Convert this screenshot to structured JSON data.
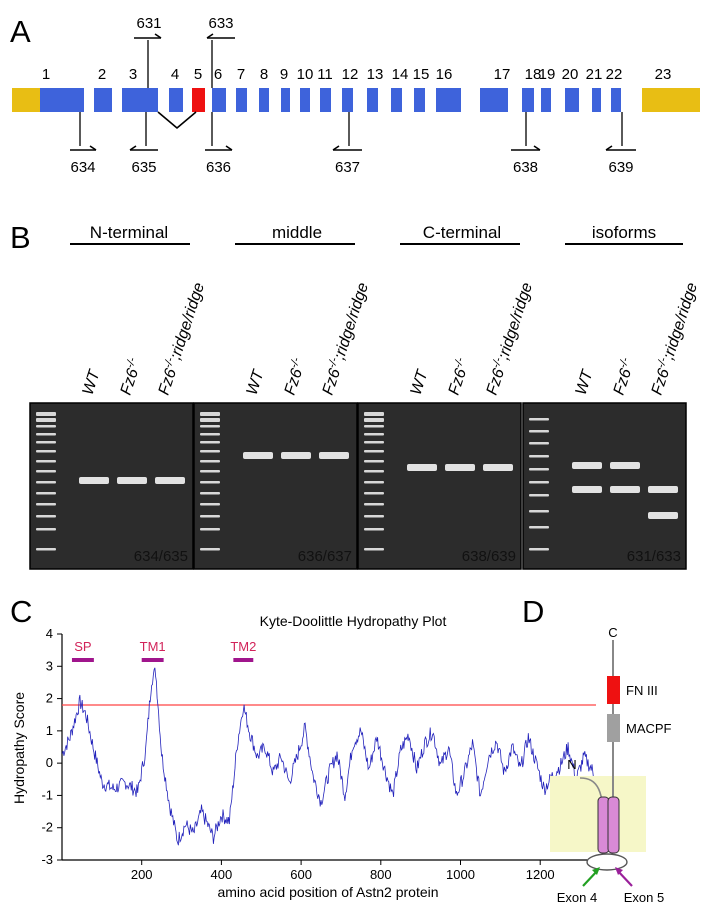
{
  "panels": {
    "a": "A",
    "b": "B",
    "c": "C",
    "d": "D"
  },
  "panel_a": {
    "exon_numbers": [
      "1",
      "2",
      "3",
      "4",
      "5",
      "6",
      "7",
      "8",
      "9",
      "10",
      "11",
      "12",
      "13",
      "14",
      "15",
      "16",
      "17",
      "18",
      "19",
      "20",
      "21",
      "22",
      "23"
    ],
    "primers_top": [
      "631",
      "633"
    ],
    "primers_bottom": [
      "634",
      "635",
      "636",
      "637",
      "638",
      "639"
    ],
    "colors": {
      "coding_exon": "#3e63db",
      "utr": "#e8be14",
      "exon5": "#ee1111",
      "line": "#000000"
    }
  },
  "panel_b": {
    "groups": [
      {
        "title": "N-terminal",
        "pair": "634/635"
      },
      {
        "title": "middle",
        "pair": "636/637"
      },
      {
        "title": "C-terminal",
        "pair": "638/639"
      },
      {
        "title": "isoforms",
        "pair": "631/633"
      }
    ],
    "lanes": [
      {
        "base": "WT",
        "sup": ""
      },
      {
        "base": "Fz6",
        "sup": "-/-"
      },
      {
        "base": "Fz6",
        "sup": "-/-",
        "tail": ";ridge/ridge"
      }
    ],
    "band_levels": {
      "N-terminal": [
        1,
        1,
        1
      ],
      "middle": [
        1,
        1,
        1
      ],
      "C-terminal": [
        1,
        1,
        1
      ],
      "isoforms_upper": [
        1,
        1,
        0
      ],
      "isoforms_lower": [
        1,
        1,
        1
      ],
      "isoforms_lowest": [
        0,
        0,
        1
      ]
    }
  },
  "chart_data": {
    "type": "line",
    "title": "Kyte-Doolittle Hydropathy Plot",
    "xlabel": "amino acid position of Astn2 protein",
    "ylabel": "Hydropathy Score",
    "xlim": [
      0,
      1340
    ],
    "ylim": [
      -3,
      4
    ],
    "x_ticks": [
      200,
      400,
      600,
      800,
      1000,
      1200
    ],
    "y_ticks": [
      -3,
      -2,
      -1,
      0,
      1,
      2,
      3,
      4
    ],
    "threshold": 1.8,
    "regions": [
      {
        "label": "SP",
        "x": [
          25,
          80
        ]
      },
      {
        "label": "TM1",
        "x": [
          200,
          255
        ]
      },
      {
        "label": "TM2",
        "x": [
          430,
          480
        ]
      }
    ],
    "profile_points": [
      [
        1,
        0.3
      ],
      [
        20,
        0.8
      ],
      [
        45,
        1.9
      ],
      [
        60,
        1.5
      ],
      [
        80,
        0.4
      ],
      [
        100,
        -0.6
      ],
      [
        130,
        -0.8
      ],
      [
        160,
        -0.6
      ],
      [
        190,
        -0.9
      ],
      [
        210,
        0.4
      ],
      [
        225,
        2.6
      ],
      [
        235,
        2.85
      ],
      [
        250,
        0.3
      ],
      [
        270,
        -1.3
      ],
      [
        290,
        -2.4
      ],
      [
        310,
        -1.9
      ],
      [
        330,
        -2.2
      ],
      [
        350,
        -1.5
      ],
      [
        380,
        -2.3
      ],
      [
        400,
        -1.6
      ],
      [
        420,
        -1.8
      ],
      [
        440,
        0.6
      ],
      [
        455,
        1.8
      ],
      [
        470,
        1.0
      ],
      [
        490,
        0.2
      ],
      [
        510,
        0.5
      ],
      [
        530,
        -0.3
      ],
      [
        550,
        0.2
      ],
      [
        570,
        -0.6
      ],
      [
        590,
        0.2
      ],
      [
        610,
        1.1
      ],
      [
        630,
        -0.4
      ],
      [
        650,
        -1.2
      ],
      [
        670,
        -0.3
      ],
      [
        690,
        0.3
      ],
      [
        710,
        -1.0
      ],
      [
        730,
        0.6
      ],
      [
        750,
        1.0
      ],
      [
        770,
        -0.2
      ],
      [
        790,
        0.8
      ],
      [
        810,
        -0.2
      ],
      [
        830,
        -1.0
      ],
      [
        850,
        0.4
      ],
      [
        870,
        0.9
      ],
      [
        890,
        -0.2
      ],
      [
        910,
        0.6
      ],
      [
        930,
        1.0
      ],
      [
        950,
        -0.1
      ],
      [
        970,
        0.5
      ],
      [
        990,
        -1.0
      ],
      [
        1010,
        -0.3
      ],
      [
        1030,
        0.6
      ],
      [
        1050,
        -1.0
      ],
      [
        1070,
        0.2
      ],
      [
        1090,
        0.7
      ],
      [
        1110,
        -0.3
      ],
      [
        1130,
        0.5
      ],
      [
        1150,
        -0.2
      ],
      [
        1170,
        0.8
      ],
      [
        1190,
        0.0
      ],
      [
        1210,
        -0.8
      ],
      [
        1230,
        -0.4
      ],
      [
        1250,
        -0.1
      ],
      [
        1270,
        0.5
      ],
      [
        1290,
        -0.5
      ],
      [
        1310,
        0.2
      ],
      [
        1330,
        -0.2
      ],
      [
        1340,
        -0.7
      ]
    ],
    "line_color": "#2222bb",
    "threshold_color": "#ff4444",
    "region_color": "#a0158c"
  },
  "panel_d": {
    "c_label": "C",
    "n_label": "N",
    "domains": [
      {
        "name": "FN III",
        "color": "#ee1111"
      },
      {
        "name": "MACPF",
        "color": "#a0a0a0"
      }
    ],
    "exon_labels": [
      "Exon 4",
      "Exon 5"
    ],
    "arrow_colors": [
      "#22a022",
      "#9a209a"
    ],
    "membrane_color": "#f6f7c8",
    "tm_color": "#d98ad6"
  }
}
